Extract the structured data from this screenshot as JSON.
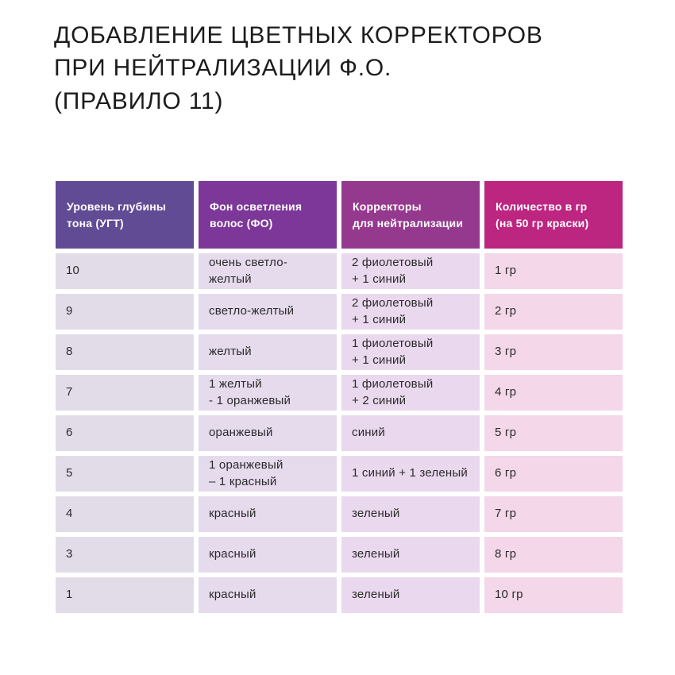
{
  "title": {
    "text": "ДОБАВЛЕНИЕ ЦВЕТНЫХ КОРРЕКТОРОВ\nПРИ НЕЙТРАЛИЗАЦИИ Ф.О.\n(ПРАВИЛО 11)"
  },
  "colors": {
    "page_background": "#ffffff",
    "title_text": "#1c1c1c",
    "cell_text": "#2b2b2b",
    "header_text": "#ffffff"
  },
  "table": {
    "headers": [
      {
        "label": "Уровень глубины\nтона (УГТ)",
        "bg": "#614b94"
      },
      {
        "label": "Фон осветления\nволос (ФО)",
        "bg": "#7c3798"
      },
      {
        "label": "Корректоры\nдля нейтрализации",
        "bg": "#95398f"
      },
      {
        "label": "Количество в гр\n(на 50 гр краски)",
        "bg": "#bc2580"
      }
    ],
    "column_colors": [
      "#e2dce9",
      "#e5dbed",
      "#ead9ee",
      "#f4d7e8"
    ],
    "rows": [
      [
        "10",
        "очень светло-желтый",
        "2 фиолетовый\n+ 1 синий",
        "1 гр"
      ],
      [
        "9",
        "светло-желтый",
        "2 фиолетовый\n+ 1 синий",
        "2 гр"
      ],
      [
        "8",
        "желтый",
        "1 фиолетовый\n+ 1 синий",
        "3 гр"
      ],
      [
        "7",
        "1 желтый\n- 1 оранжевый",
        "1 фиолетовый\n+ 2 синий",
        "4 гр"
      ],
      [
        "6",
        "оранжевый",
        "синий",
        "5 гр"
      ],
      [
        "5",
        "1 оранжевый\n– 1 красный",
        "1 синий + 1 зеленый",
        "6 гр"
      ],
      [
        "4",
        "красный",
        "зеленый",
        "7 гр"
      ],
      [
        "3",
        "красный",
        "зеленый",
        "8 гр"
      ],
      [
        "1",
        "красный",
        "зеленый",
        "10 гр"
      ]
    ]
  }
}
